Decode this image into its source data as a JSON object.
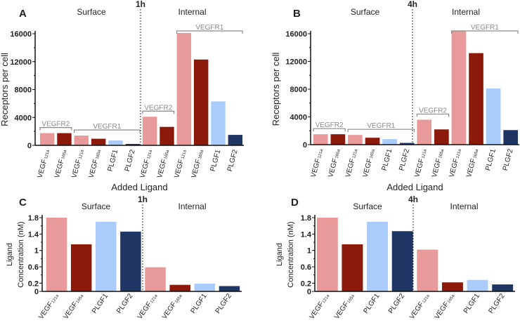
{
  "colors": {
    "vegf121a": "#e8999a",
    "vegf165a": "#8b1a0a",
    "plgf1": "#aaccfa",
    "plgf2": "#1f3564",
    "bracket": "#8a8a8a"
  },
  "chart_data": [
    {
      "panel": "A",
      "type": "bar",
      "time_label": "1h",
      "section_labels": [
        "Surface",
        "Internal"
      ],
      "ylabel": "Receptors per cell",
      "xlabel": "Added Ligand",
      "ylim": [
        0,
        16000
      ],
      "yticks": [
        0,
        4000,
        8000,
        12000,
        16000
      ],
      "categories": [
        {
          "main": "VEGF",
          "sub": "121a",
          "color": "vegf121a"
        },
        {
          "main": "VEGF",
          "sub": "165a",
          "color": "vegf165a"
        },
        {
          "main": "VEGF",
          "sub": "121a",
          "color": "vegf121a"
        },
        {
          "main": "VEGF",
          "sub": "165a",
          "color": "vegf165a"
        },
        {
          "main": "PLGF1",
          "sub": "",
          "color": "plgf1"
        },
        {
          "main": "PLGF2",
          "sub": "",
          "color": "plgf2"
        },
        {
          "main": "VEGF",
          "sub": "121a",
          "color": "vegf121a"
        },
        {
          "main": "VEGF",
          "sub": "165a",
          "color": "vegf165a"
        },
        {
          "main": "VEGF",
          "sub": "121a",
          "color": "vegf121a"
        },
        {
          "main": "VEGF",
          "sub": "165a",
          "color": "vegf165a"
        },
        {
          "main": "PLGF1",
          "sub": "",
          "color": "plgf1"
        },
        {
          "main": "PLGF2",
          "sub": "",
          "color": "plgf2"
        }
      ],
      "values": [
        1750,
        1750,
        1400,
        950,
        700,
        200,
        4100,
        2650,
        16100,
        12300,
        6300,
        1500
      ],
      "divider_after_index": 5,
      "brackets": [
        {
          "label": "VEGFR2",
          "from": 0,
          "to": 1
        },
        {
          "label": "VEGFR1",
          "from": 2,
          "to": 5
        },
        {
          "label": "VEGFR2",
          "from": 6,
          "to": 7
        },
        {
          "label": "VEGFR1",
          "from": 8,
          "to": 11
        }
      ]
    },
    {
      "panel": "B",
      "type": "bar",
      "time_label": "4h",
      "section_labels": [
        "Surface",
        "Internal"
      ],
      "ylabel": "Receptors per cell",
      "xlabel": "Added Ligand",
      "ylim": [
        0,
        16000
      ],
      "yticks": [
        0,
        4000,
        8000,
        12000,
        16000
      ],
      "categories": [
        {
          "main": "VEGF",
          "sub": "121a",
          "color": "vegf121a"
        },
        {
          "main": "VEGF",
          "sub": "165a",
          "color": "vegf165a"
        },
        {
          "main": "VEGF",
          "sub": "121a",
          "color": "vegf121a"
        },
        {
          "main": "VEGF",
          "sub": "165a",
          "color": "vegf165a"
        },
        {
          "main": "PLGF1",
          "sub": "",
          "color": "plgf1"
        },
        {
          "main": "PLGF2",
          "sub": "",
          "color": "plgf2"
        },
        {
          "main": "VEGF",
          "sub": "121a",
          "color": "vegf121a"
        },
        {
          "main": "VEGF",
          "sub": "165a",
          "color": "vegf165a"
        },
        {
          "main": "VEGF",
          "sub": "121a",
          "color": "vegf121a"
        },
        {
          "main": "VEGF",
          "sub": "165a",
          "color": "vegf165a"
        },
        {
          "main": "PLGF1",
          "sub": "",
          "color": "plgf1"
        },
        {
          "main": "PLGF2",
          "sub": "",
          "color": "plgf2"
        }
      ],
      "values": [
        1500,
        1500,
        1400,
        1000,
        800,
        250,
        3600,
        2200,
        16400,
        13200,
        8100,
        2100
      ],
      "divider_after_index": 5,
      "brackets": [
        {
          "label": "VEGFR2",
          "from": 0,
          "to": 1
        },
        {
          "label": "VEGFR1",
          "from": 2,
          "to": 5
        },
        {
          "label": "VEGFR2",
          "from": 6,
          "to": 7
        },
        {
          "label": "VEGFR1",
          "from": 8,
          "to": 11
        }
      ]
    },
    {
      "panel": "C",
      "type": "bar",
      "time_label": "1h",
      "section_labels": [
        "Surface",
        "Internal"
      ],
      "ylabel": [
        "Ligand",
        "Concentration (nM)"
      ],
      "xlabel": "",
      "ylim": [
        0,
        1.8
      ],
      "yticks": [
        0,
        0.2,
        0.6,
        1.0,
        1.4,
        1.8
      ],
      "categories": [
        {
          "main": "VEGF",
          "sub": "121a",
          "color": "vegf121a"
        },
        {
          "main": "VEGF",
          "sub": "165a",
          "color": "vegf165a"
        },
        {
          "main": "PLGF1",
          "sub": "",
          "color": "plgf1"
        },
        {
          "main": "PLGF2",
          "sub": "",
          "color": "plgf2"
        },
        {
          "main": "VEGF",
          "sub": "121a",
          "color": "vegf121a"
        },
        {
          "main": "VEGF",
          "sub": "165a",
          "color": "vegf165a"
        },
        {
          "main": "PLGF1",
          "sub": "",
          "color": "plgf1"
        },
        {
          "main": "PLGF2",
          "sub": "",
          "color": "plgf2"
        }
      ],
      "values": [
        1.8,
        1.15,
        1.7,
        1.46,
        0.59,
        0.16,
        0.19,
        0.13
      ],
      "divider_after_index": 3,
      "brackets": []
    },
    {
      "panel": "D",
      "type": "bar",
      "time_label": "4h",
      "section_labels": [
        "Surface",
        "Internal"
      ],
      "ylabel": [
        "Ligand",
        "Concentration (nM)"
      ],
      "xlabel": "",
      "ylim": [
        0,
        1.8
      ],
      "yticks": [
        0,
        0.2,
        0.6,
        1.0,
        1.4,
        1.8
      ],
      "categories": [
        {
          "main": "VEGF",
          "sub": "121a",
          "color": "vegf121a"
        },
        {
          "main": "VEGF",
          "sub": "165a",
          "color": "vegf165a"
        },
        {
          "main": "PLGF1",
          "sub": "",
          "color": "plgf1"
        },
        {
          "main": "PLGF2",
          "sub": "",
          "color": "plgf2"
        },
        {
          "main": "VEGF",
          "sub": "121a",
          "color": "vegf121a"
        },
        {
          "main": "VEGF",
          "sub": "165a",
          "color": "vegf165a"
        },
        {
          "main": "PLGF1",
          "sub": "",
          "color": "plgf1"
        },
        {
          "main": "PLGF2",
          "sub": "",
          "color": "plgf2"
        }
      ],
      "values": [
        1.8,
        1.15,
        1.7,
        1.47,
        1.02,
        0.22,
        0.28,
        0.17
      ],
      "divider_after_index": 3,
      "brackets": []
    }
  ]
}
